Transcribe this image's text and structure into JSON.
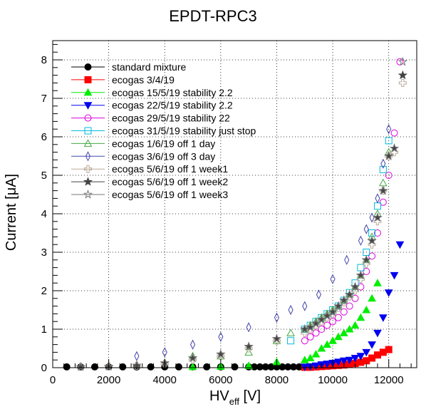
{
  "chart_data": {
    "type": "scatter",
    "title": "EPDT-RPC3",
    "xlabel": "HV",
    "xlabel_sub": "eff",
    "xlabel_unit": " [V]",
    "ylabel": "Current [μA]",
    "xlim": [
      0,
      13000
    ],
    "ylim": [
      0,
      8.5
    ],
    "xticks": [
      0,
      2000,
      4000,
      6000,
      8000,
      10000,
      12000
    ],
    "yticks": [
      0,
      1,
      2,
      3,
      4,
      5,
      6,
      7,
      8
    ],
    "grid": true,
    "legend_position": "top-left",
    "series": [
      {
        "name": "standard mixture",
        "marker": "circle",
        "filled": true,
        "color": "#000000",
        "x": [
          500,
          1000,
          1500,
          2000,
          2500,
          3000,
          3500,
          4000,
          4500,
          5000,
          5500,
          6000,
          6500,
          7000,
          7200,
          7400,
          7600,
          7800,
          8000,
          8200,
          8400,
          8600,
          8800
        ],
        "y": [
          0.02,
          0.02,
          0.02,
          0.02,
          0.02,
          0.02,
          0.02,
          0.02,
          0.02,
          0.02,
          0.02,
          0.02,
          0.02,
          0.02,
          0.02,
          0.02,
          0.02,
          0.02,
          0.02,
          0.02,
          0.02,
          0.02,
          0.02
        ]
      },
      {
        "name": "ecogas 3/4/19",
        "marker": "square",
        "filled": true,
        "color": "#ff0000",
        "x": [
          9000,
          9200,
          9400,
          9600,
          9800,
          10000,
          10200,
          10400,
          10600,
          10800,
          11000,
          11200,
          11400,
          11600,
          11800,
          12000
        ],
        "y": [
          0.01,
          0.01,
          0.02,
          0.03,
          0.04,
          0.05,
          0.06,
          0.07,
          0.09,
          0.11,
          0.14,
          0.18,
          0.25,
          0.33,
          0.4,
          0.47
        ]
      },
      {
        "name": "ecogas 15/5/19 stability 2.2",
        "marker": "triangle-up",
        "filled": true,
        "color": "#00ee00",
        "x": [
          5000,
          6000,
          7000,
          8000,
          9000,
          9200,
          9400,
          9600,
          9800,
          10000,
          10200,
          10400,
          10600,
          10800,
          11000,
          11200,
          11400,
          11600
        ],
        "y": [
          0.02,
          0.03,
          0.05,
          0.15,
          0.2,
          0.25,
          0.35,
          0.5,
          0.6,
          0.7,
          0.8,
          0.9,
          1.0,
          1.1,
          1.3,
          1.5,
          1.8,
          2.2
        ]
      },
      {
        "name": "ecogas 22/5/19 stability 2.2",
        "marker": "triangle-down",
        "filled": true,
        "color": "#0000ee",
        "x": [
          9000,
          9200,
          9400,
          9600,
          9800,
          10000,
          10200,
          10400,
          10600,
          10800,
          11000,
          11200,
          11400,
          11600,
          11800,
          12000,
          12200,
          12400
        ],
        "y": [
          0.02,
          0.03,
          0.05,
          0.08,
          0.1,
          0.12,
          0.15,
          0.18,
          0.2,
          0.25,
          0.3,
          0.4,
          0.6,
          0.9,
          1.3,
          1.95,
          2.4,
          3.2
        ]
      },
      {
        "name": "ecogas 29/5/19 stability 22",
        "marker": "circle",
        "filled": false,
        "color": "#dd00dd",
        "x": [
          9000,
          9200,
          9400,
          9600,
          9800,
          10000,
          10200,
          10400,
          10600,
          10800,
          11000,
          11200,
          11400,
          11600,
          11800,
          12000,
          12200,
          12400
        ],
        "y": [
          0.7,
          0.8,
          0.9,
          1.0,
          1.1,
          1.2,
          1.3,
          1.45,
          1.6,
          1.8,
          2.1,
          2.5,
          2.9,
          3.5,
          4.3,
          5.0,
          6.1,
          7.95
        ]
      },
      {
        "name": "ecogas 31/5/19 stability just stop",
        "marker": "square",
        "filled": false,
        "color": "#00bbdd",
        "x": [
          8500,
          9000,
          9200,
          9400,
          9600,
          9800,
          10000,
          10200,
          10400,
          10600,
          10800,
          11000,
          11200,
          11400,
          11600,
          11800,
          12000
        ],
        "y": [
          0.7,
          1.0,
          1.1,
          1.2,
          1.3,
          1.4,
          1.5,
          1.6,
          1.75,
          1.95,
          2.2,
          2.6,
          3.0,
          3.5,
          4.2,
          5.15,
          5.9
        ]
      },
      {
        "name": "ecogas 1/6/19 off 1 day",
        "marker": "triangle-up",
        "filled": false,
        "color": "#44aa44",
        "x": [
          5000,
          6000,
          7000,
          8000,
          8500,
          9000,
          9200,
          9400,
          9600,
          9800,
          10000,
          10200,
          10400,
          10600,
          10800,
          11000,
          11200,
          11400,
          11600,
          11800,
          12000
        ],
        "y": [
          0.3,
          0.3,
          0.4,
          0.7,
          0.9,
          1.0,
          1.1,
          1.2,
          1.3,
          1.4,
          1.5,
          1.6,
          1.75,
          1.9,
          2.1,
          2.4,
          2.8,
          3.4,
          4.0,
          4.8,
          5.6
        ]
      },
      {
        "name": "ecogas 3/6/19 off 3 day",
        "marker": "diamond",
        "filled": false,
        "color": "#4444aa",
        "x": [
          3000,
          4000,
          5000,
          6000,
          7000,
          8000,
          8500,
          9000,
          9500,
          10000,
          10500,
          11000,
          11200,
          11400,
          11600,
          11800,
          12000
        ],
        "y": [
          0.3,
          0.4,
          0.6,
          0.8,
          1.05,
          1.3,
          1.5,
          1.6,
          1.9,
          2.3,
          2.8,
          3.3,
          3.6,
          3.9,
          4.4,
          5.3,
          6.2
        ]
      },
      {
        "name": "ecogas 5/6/19 off 1 week1",
        "marker": "cross",
        "filled": false,
        "color": "#bbaa99",
        "x": [
          1000,
          2000,
          3000,
          4000,
          5000,
          6000,
          7000,
          8000,
          9000,
          9200,
          9400,
          9600,
          9800,
          10000,
          10200,
          10400,
          10600,
          10800,
          11000,
          11200,
          11400,
          11600,
          11800,
          12000,
          12200,
          12500
        ],
        "y": [
          0.02,
          0.03,
          0.05,
          0.1,
          0.2,
          0.3,
          0.5,
          0.7,
          0.9,
          1.0,
          1.1,
          1.2,
          1.3,
          1.4,
          1.55,
          1.7,
          1.85,
          2.0,
          2.3,
          2.7,
          3.2,
          3.8,
          4.6,
          5.5,
          5.6,
          7.4
        ]
      },
      {
        "name": "ecogas 5/6/19 off 1 week2",
        "marker": "star",
        "filled": true,
        "color": "#444444",
        "x": [
          1000,
          2000,
          3000,
          4000,
          5000,
          6000,
          7000,
          8000,
          9000,
          9200,
          9400,
          9600,
          9800,
          10000,
          10200,
          10400,
          10600,
          10800,
          11000,
          11200,
          11400,
          11600,
          11800,
          12000,
          12200,
          12500
        ],
        "y": [
          0.02,
          0.03,
          0.06,
          0.12,
          0.25,
          0.35,
          0.55,
          0.75,
          1.0,
          1.05,
          1.15,
          1.25,
          1.35,
          1.45,
          1.6,
          1.75,
          1.9,
          2.1,
          2.4,
          2.8,
          3.3,
          3.9,
          4.6,
          5.5,
          5.7,
          7.6
        ]
      },
      {
        "name": "ecogas 5/6/19 off 1 week3",
        "marker": "star",
        "filled": false,
        "color": "#777777",
        "x": [
          1000,
          2000,
          3000,
          4000,
          5000,
          6000,
          7000,
          8000,
          9000,
          9200,
          9400,
          9600,
          9800,
          10000,
          10200,
          10400,
          10600,
          10800,
          11000,
          11200,
          11400,
          11600,
          11800,
          12000,
          12200,
          12500
        ],
        "y": [
          0.02,
          0.03,
          0.06,
          0.12,
          0.25,
          0.35,
          0.55,
          0.75,
          1.0,
          1.05,
          1.15,
          1.25,
          1.35,
          1.45,
          1.6,
          1.75,
          1.9,
          2.1,
          2.4,
          2.8,
          3.3,
          3.9,
          4.6,
          5.5,
          5.7,
          7.95
        ]
      }
    ]
  }
}
